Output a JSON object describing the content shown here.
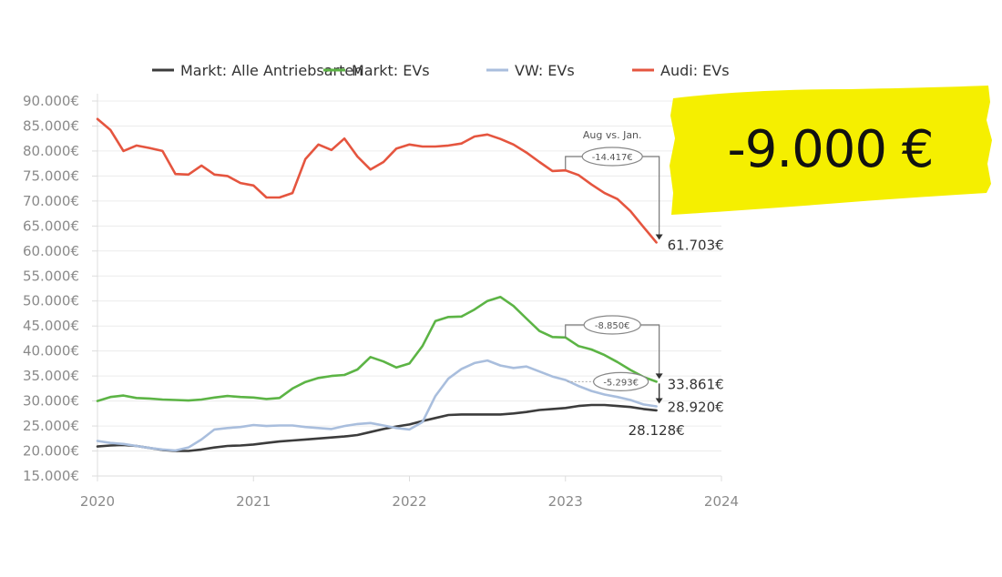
{
  "highlight": {
    "text": "-9.000 €",
    "background_color": "#f5ef00"
  },
  "chart_data": {
    "type": "line",
    "title": "",
    "xlabel": "",
    "ylabel": "",
    "xlim": [
      2020,
      2024
    ],
    "ylim": [
      15000,
      90000
    ],
    "x_ticks": [
      "2020",
      "2021",
      "2022",
      "2023",
      "2024"
    ],
    "y_ticks": [
      "15.000€",
      "20.000€",
      "25.000€",
      "30.000€",
      "35.000€",
      "40.000€",
      "45.000€",
      "50.000€",
      "55.000€",
      "60.000€",
      "65.000€",
      "70.000€",
      "75.000€",
      "80.000€",
      "85.000€",
      "90.000€"
    ],
    "grid": true,
    "legend_position": "top",
    "x_start": "2020-01",
    "x_step": "month",
    "series": [
      {
        "name": "Markt: Alle Antriebsarten",
        "color": "#3c3c3c",
        "values": [
          20900,
          21100,
          21200,
          21000,
          20600,
          20200,
          20000,
          20000,
          20300,
          20700,
          21000,
          21100,
          21300,
          21600,
          21900,
          22100,
          22300,
          22500,
          22700,
          22900,
          23200,
          23800,
          24400,
          24900,
          25300,
          26000,
          26600,
          27200,
          27300,
          27300,
          27300,
          27300,
          27500,
          27800,
          28200,
          28400,
          28600,
          29000,
          29200,
          29200,
          29000,
          28800,
          28400,
          28128
        ],
        "end_label": "28.128€"
      },
      {
        "name": "Markt: EVs",
        "color": "#5cb445",
        "values": [
          30000,
          30800,
          31100,
          30600,
          30500,
          30300,
          30200,
          30100,
          30300,
          30700,
          31000,
          30800,
          30700,
          30400,
          30600,
          32500,
          33800,
          34600,
          35000,
          35200,
          36300,
          38800,
          37900,
          36700,
          37500,
          41000,
          46000,
          46800,
          46900,
          48300,
          50000,
          50800,
          49000,
          46500,
          44000,
          42800,
          42711,
          41000,
          40300,
          39200,
          37800,
          36200,
          34800,
          33861
        ],
        "end_label": "33.861€",
        "callout": "-8.850€"
      },
      {
        "name": "VW: EVs",
        "color": "#a9bedd",
        "values": [
          22000,
          21600,
          21400,
          21000,
          20600,
          20300,
          20100,
          20700,
          22300,
          24300,
          24600,
          24800,
          25200,
          25000,
          25100,
          25100,
          24800,
          24600,
          24400,
          25000,
          25400,
          25600,
          25100,
          24600,
          24300,
          25800,
          31000,
          34500,
          36400,
          37600,
          38100,
          37100,
          36600,
          36900,
          35900,
          34900,
          34213,
          33000,
          32000,
          31300,
          30800,
          30200,
          29300,
          28920
        ],
        "end_label": "28.920€",
        "callout": "-5.293€"
      },
      {
        "name": "Audi: EVs",
        "color": "#e5553f",
        "values": [
          86400,
          84200,
          80000,
          81100,
          80600,
          80000,
          75400,
          75300,
          77100,
          75300,
          75000,
          73600,
          73100,
          70700,
          70700,
          71600,
          78400,
          81300,
          80200,
          82500,
          78900,
          76300,
          77800,
          80500,
          81300,
          80900,
          80900,
          81100,
          81500,
          82900,
          83300,
          82400,
          81300,
          79700,
          77800,
          76000,
          76120,
          75200,
          73300,
          71600,
          70400,
          68000,
          64800,
          61703
        ],
        "end_label": "61.703€",
        "callout": "-14.417€",
        "callout_title": "Aug vs. Jan."
      }
    ]
  }
}
